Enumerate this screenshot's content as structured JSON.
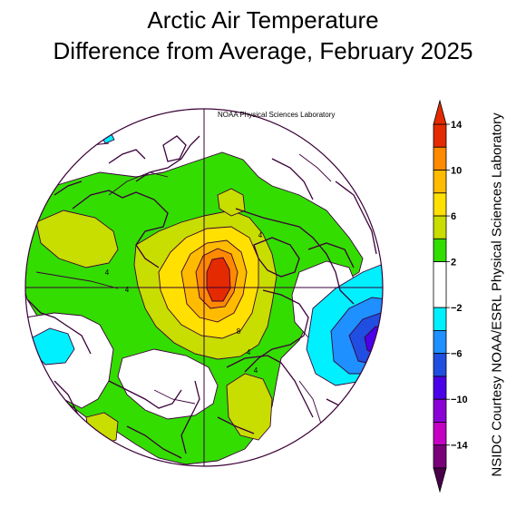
{
  "title_line1": "Arctic Air Temperature",
  "title_line2": "Difference from Average, February 2025",
  "lab_label": "NOAA Physical Sciences Laboratory",
  "credit": "NSIDC Courtesy NOAA/ESRL Physical Sciences Laboratory",
  "contour_labels": [
    "4",
    "4",
    "4",
    "8",
    "4",
    "4"
  ],
  "colorbar": {
    "min": -14,
    "max": 14,
    "tick_labels": [
      "14",
      "10",
      "6",
      "2",
      "−2",
      "−6",
      "−10",
      "−14"
    ],
    "tick_values": [
      14,
      10,
      6,
      2,
      -2,
      -6,
      -10,
      -14
    ],
    "bins": [
      {
        "from": 12,
        "to": 14,
        "color": "#e32a00"
      },
      {
        "from": 10,
        "to": 12,
        "color": "#ff8a00"
      },
      {
        "from": 8,
        "to": 10,
        "color": "#ffbb00"
      },
      {
        "from": 6,
        "to": 8,
        "color": "#ffe000"
      },
      {
        "from": 4,
        "to": 6,
        "color": "#c8dd00"
      },
      {
        "from": 2,
        "to": 4,
        "color": "#33dd00"
      },
      {
        "from": -2,
        "to": 2,
        "color": "#ffffff"
      },
      {
        "from": -4,
        "to": -2,
        "color": "#00f0ff"
      },
      {
        "from": -6,
        "to": -4,
        "color": "#1e90ff"
      },
      {
        "from": -8,
        "to": -6,
        "color": "#1f4ee0"
      },
      {
        "from": -10,
        "to": -8,
        "color": "#4a00e8"
      },
      {
        "from": -12,
        "to": -10,
        "color": "#8c00d8"
      },
      {
        "from": -14,
        "to": -12,
        "color": "#c400c4"
      },
      {
        "from": -16,
        "to": -14,
        "color": "#7a007a"
      }
    ],
    "over_color": "#e32a00",
    "under_color": "#4a0048"
  },
  "anomaly_colors": {
    "green": "#33dd00",
    "yellowgreen": "#c8dd00",
    "yellow": "#ffe000",
    "gold": "#ffbb00",
    "orange": "#ff8a00",
    "red": "#e32a00",
    "cyan": "#00f0ff",
    "lightblue": "#1e90ff",
    "blue": "#1f4ee0",
    "purple": "#4a00e8"
  }
}
